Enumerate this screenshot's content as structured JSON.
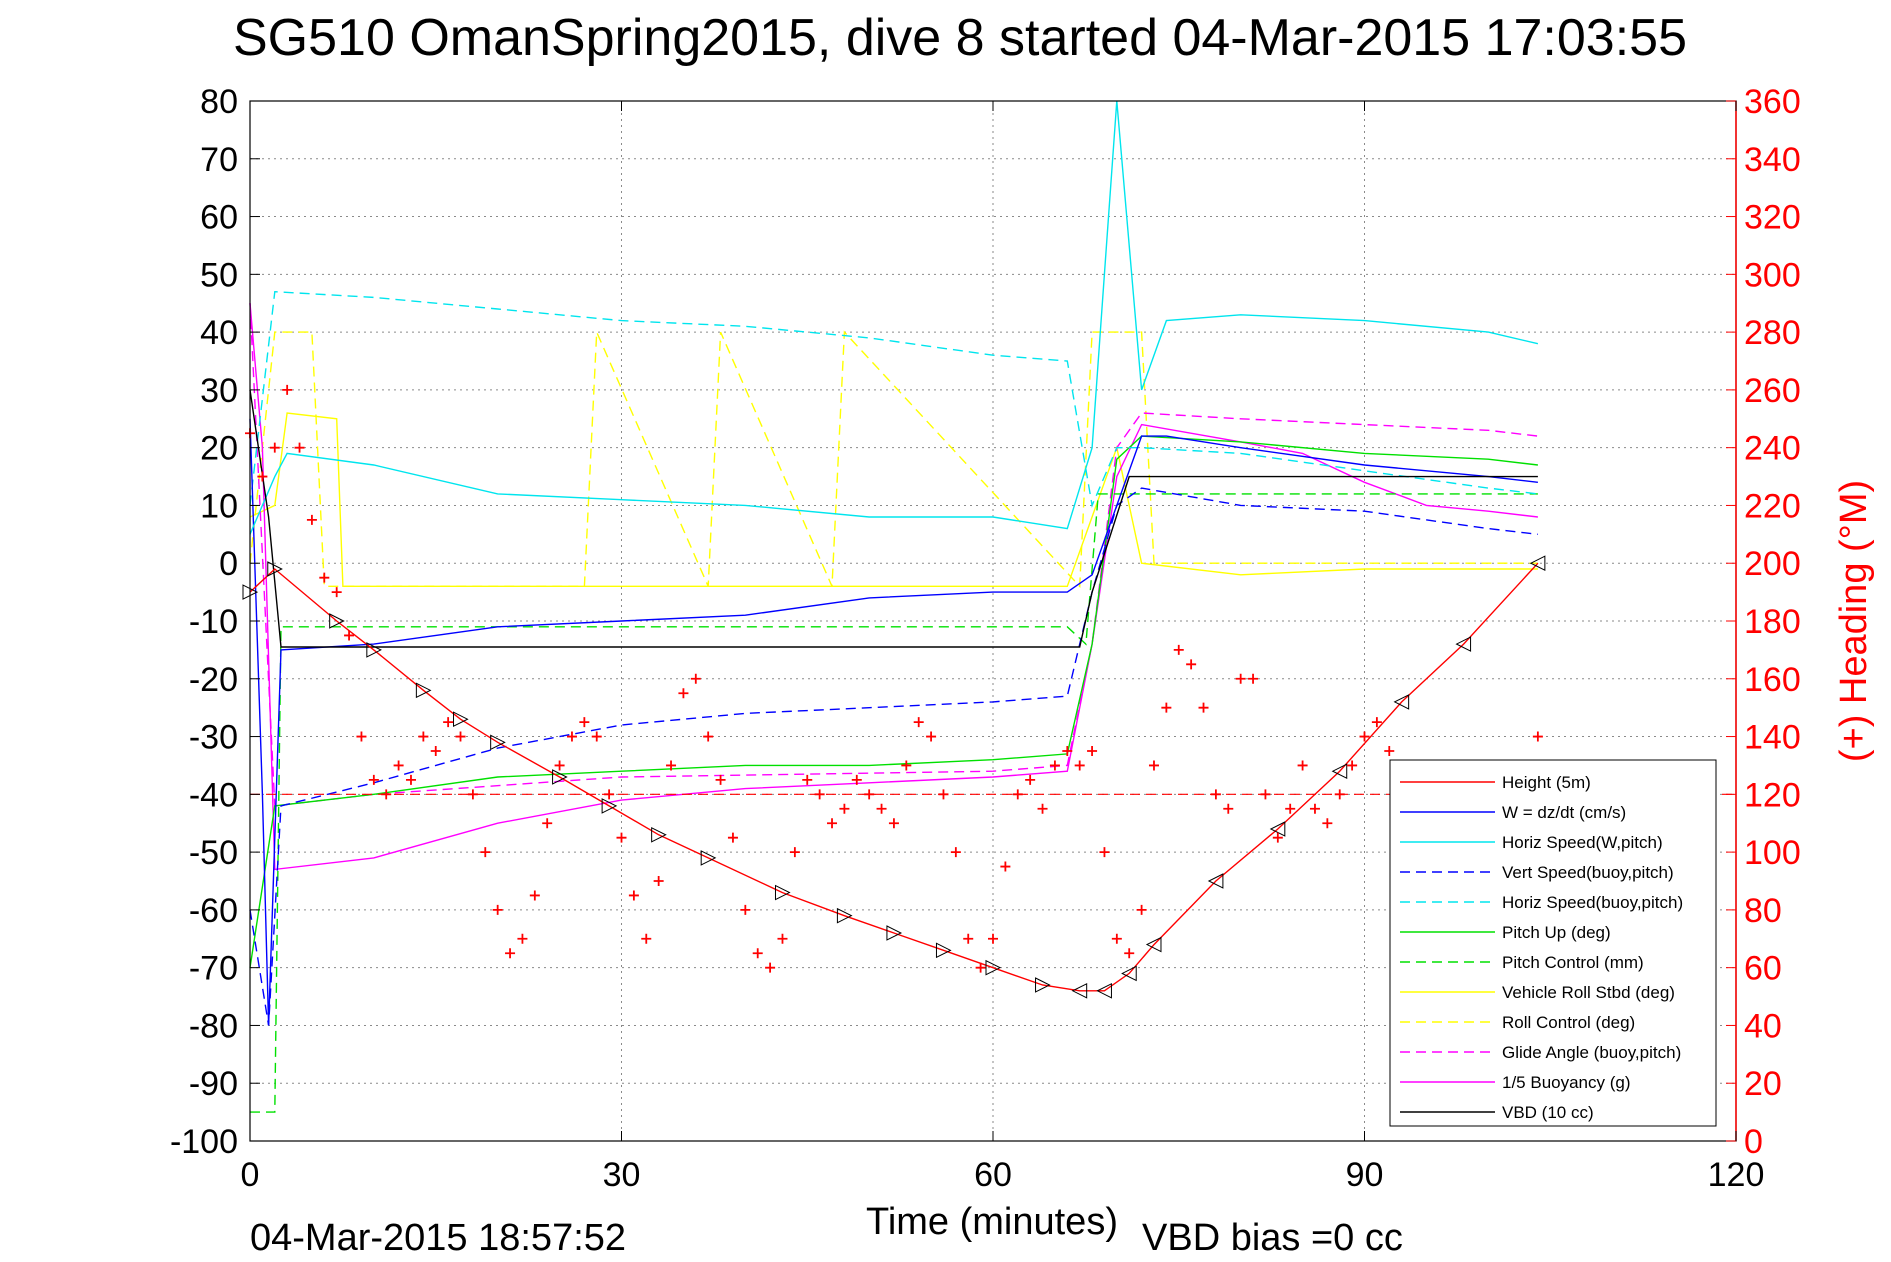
{
  "chart_data": {
    "type": "line",
    "title": "SG510 OmanSpring2015, dive 8 started 04-Mar-2015 17:03:55",
    "xlabel": "Time (minutes)",
    "ylabel": "",
    "y2label": "(+) Heading (°M)",
    "footer_left": "04-Mar-2015 18:57:52",
    "footer_right": "VBD bias =0 cc",
    "xlim": [
      0,
      120
    ],
    "ylim": [
      -100,
      80
    ],
    "y2lim": [
      0,
      360
    ],
    "xticks": [
      "0",
      "30",
      "60",
      "90",
      "120"
    ],
    "yticks": [
      "80",
      "70",
      "60",
      "50",
      "40",
      "30",
      "20",
      "10",
      "0",
      "-10",
      "-20",
      "-30",
      "-40",
      "-50",
      "-60",
      "-70",
      "-80",
      "-90",
      "-100"
    ],
    "y2ticks": [
      "360",
      "340",
      "320",
      "300",
      "280",
      "260",
      "240",
      "220",
      "200",
      "180",
      "160",
      "140",
      "120",
      "100",
      "80",
      "60",
      "40",
      "20",
      "0"
    ],
    "grid": true,
    "legend_position": "bottom-right",
    "colors": {
      "height": "#ff0000",
      "w": "#0000ff",
      "horiz_speed": "#00e5ee",
      "vert_speed_model": "#0000ff",
      "horiz_speed_model": "#00e5ee",
      "pitch": "#00e000",
      "pitch_control": "#00e000",
      "roll": "#ffff00",
      "roll_control": "#ffff00",
      "glide_angle": "#ff00ff",
      "buoyancy": "#ff00ff",
      "vbd": "#000000",
      "heading": "#ff0000"
    },
    "series": [
      {
        "name": "Height (5m)",
        "style": "solid",
        "color": "#ff0000",
        "x": [
          0,
          2,
          7,
          10,
          14,
          17,
          20,
          25,
          29,
          33,
          37,
          43,
          48,
          52,
          56,
          60,
          64,
          67,
          69,
          71,
          73,
          78,
          83,
          88,
          93,
          98,
          104
        ],
        "y": [
          -5,
          -1,
          -10,
          -15,
          -22,
          -27,
          -31,
          -37,
          -42,
          -47,
          -51,
          -57,
          -61,
          -64,
          -67,
          -70,
          -73,
          -74,
          -74,
          -71,
          -66,
          -55,
          -46,
          -36,
          -24,
          -14,
          0
        ]
      },
      {
        "name": "W = dz/dt (cm/s)",
        "style": "solid",
        "color": "#0000ff",
        "x": [
          0,
          1,
          1.5,
          2.5,
          10,
          20,
          30,
          40,
          50,
          60,
          66,
          68,
          70,
          72,
          74,
          80,
          90,
          100,
          104
        ],
        "y": [
          25,
          -40,
          -80,
          -15,
          -14,
          -11,
          -10,
          -9,
          -6,
          -5,
          -5,
          -2,
          10,
          22,
          22,
          20,
          17,
          15,
          14
        ]
      },
      {
        "name": "Horiz Speed(W,pitch)",
        "style": "solid",
        "color": "#00e5ee",
        "x": [
          0,
          2,
          3,
          10,
          20,
          30,
          40,
          50,
          60,
          66,
          68,
          69,
          70,
          72,
          74,
          80,
          90,
          100,
          104
        ],
        "y": [
          5,
          15,
          19,
          17,
          12,
          11,
          10,
          8,
          8,
          6,
          20,
          50,
          80,
          30,
          42,
          43,
          42,
          40,
          38
        ]
      },
      {
        "name": "Vert Speed(buoy,pitch)",
        "style": "dashed",
        "color": "#0000ff",
        "x": [
          0,
          1.5,
          2.5,
          10,
          20,
          30,
          40,
          50,
          60,
          66,
          68,
          70,
          72,
          80,
          90,
          100,
          104
        ],
        "y": [
          -60,
          -80,
          -42,
          -38,
          -32,
          -28,
          -26,
          -25,
          -24,
          -23,
          -5,
          10,
          13,
          10,
          9,
          6,
          5
        ]
      },
      {
        "name": "Horiz Speed(buoy,pitch)",
        "style": "dashed",
        "color": "#00e5ee",
        "x": [
          0,
          2,
          10,
          20,
          30,
          40,
          50,
          60,
          66,
          68,
          70,
          72,
          80,
          90,
          100,
          104
        ],
        "y": [
          10,
          47,
          46,
          44,
          42,
          41,
          39,
          36,
          35,
          10,
          20,
          20,
          19,
          16,
          13,
          12
        ]
      },
      {
        "name": "Pitch Up (deg)",
        "style": "solid",
        "color": "#00e000",
        "x": [
          0,
          2,
          10,
          20,
          30,
          40,
          50,
          60,
          66,
          68,
          70,
          72,
          80,
          90,
          100,
          104
        ],
        "y": [
          -70,
          -42,
          -40,
          -37,
          -36,
          -35,
          -35,
          -34,
          -33,
          -14,
          18,
          22,
          21,
          19,
          18,
          17
        ]
      },
      {
        "name": "Pitch Control (mm)",
        "style": "dashed",
        "color": "#00e000",
        "x": [
          0,
          2,
          2.5,
          10,
          66,
          67.5,
          68.5,
          70,
          104
        ],
        "y": [
          -95,
          -95,
          -11,
          -11,
          -11,
          -14,
          12,
          12,
          12
        ]
      },
      {
        "name": "Vehicle Roll Stbd (deg)",
        "style": "solid",
        "color": "#ffff00",
        "x": [
          0,
          2,
          3,
          7,
          7.5,
          10,
          20,
          30,
          40,
          50,
          60,
          66,
          70,
          72,
          80,
          90,
          100,
          104
        ],
        "y": [
          8,
          10,
          26,
          25,
          -4,
          -4,
          -4,
          -4,
          -4,
          -4,
          -4,
          -4,
          20,
          0,
          -2,
          -1,
          -1,
          -1
        ]
      },
      {
        "name": "Roll Control (deg)",
        "style": "dashed",
        "color": "#ffff00",
        "x": [
          0,
          2,
          5,
          6,
          27,
          28,
          37,
          38,
          47,
          48,
          67,
          68,
          72,
          73,
          104
        ],
        "y": [
          0,
          40,
          40,
          -4,
          -4,
          40,
          -4,
          40,
          -4,
          40,
          -4,
          40,
          40,
          0,
          0
        ]
      },
      {
        "name": "Glide Angle (buoy,pitch)",
        "style": "dashed",
        "color": "#ff00ff",
        "x": [
          0,
          2,
          10,
          30,
          60,
          66,
          68,
          70,
          72,
          80,
          90,
          100,
          104
        ],
        "y": [
          45,
          -42,
          -40,
          -37,
          -36,
          -35,
          -14,
          20,
          26,
          25,
          24,
          23,
          22
        ]
      },
      {
        "name": "1/5 Buoyancy (g)",
        "style": "solid",
        "color": "#ff00ff",
        "x": [
          0,
          1,
          2,
          10,
          20,
          30,
          40,
          50,
          60,
          66,
          68,
          70,
          72,
          80,
          85,
          90,
          95,
          100,
          104
        ],
        "y": [
          45,
          20,
          -53,
          -51,
          -45,
          -41,
          -39,
          -38,
          -37,
          -36,
          -14,
          15,
          24,
          21,
          19,
          14,
          10,
          9,
          8
        ]
      },
      {
        "name": "VBD (10 cc)",
        "style": "solid",
        "color": "#000000",
        "x": [
          0,
          1.5,
          2.5,
          10,
          30,
          60,
          67,
          68,
          71,
          72,
          80,
          90,
          100,
          104
        ],
        "y": [
          30,
          8,
          -14.5,
          -14.5,
          -14.5,
          -14.5,
          -14.5,
          -5,
          15,
          15,
          15,
          15,
          15,
          15
        ]
      },
      {
        "name": "",
        "axis": "right",
        "style": "markers",
        "color": "#ff0000",
        "x": [
          0,
          1,
          2,
          3,
          4,
          5,
          6,
          7,
          8,
          9,
          10,
          11,
          12,
          13,
          14,
          15,
          16,
          17,
          18,
          19,
          20,
          21,
          22,
          23,
          24,
          25,
          26,
          27,
          28,
          29,
          30,
          31,
          32,
          33,
          34,
          35,
          36,
          37,
          38,
          39,
          40,
          41,
          42,
          43,
          44,
          45,
          46,
          47,
          48,
          49,
          50,
          51,
          52,
          53,
          54,
          55,
          56,
          57,
          58,
          59,
          60,
          61,
          62,
          63,
          64,
          65,
          66,
          67,
          68,
          69,
          70,
          71,
          72,
          73,
          74,
          75,
          76,
          77,
          78,
          79,
          80,
          81,
          82,
          83,
          84,
          85,
          86,
          87,
          88,
          89,
          90,
          91,
          92,
          93,
          104
        ],
        "y": [
          245,
          230,
          240,
          260,
          240,
          215,
          195,
          190,
          175,
          140,
          125,
          120,
          130,
          125,
          140,
          135,
          145,
          140,
          120,
          100,
          80,
          65,
          70,
          85,
          110,
          130,
          140,
          145,
          140,
          120,
          105,
          85,
          70,
          90,
          130,
          155,
          160,
          140,
          125,
          105,
          80,
          65,
          60,
          70,
          100,
          125,
          120,
          110,
          115,
          125,
          120,
          115,
          110,
          130,
          145,
          140,
          120,
          100,
          70,
          60,
          70,
          95,
          120,
          125,
          115,
          130,
          135,
          130,
          135,
          100,
          70,
          65,
          80,
          130,
          150,
          170,
          165,
          150,
          120,
          115,
          160,
          160,
          120,
          105,
          115,
          130,
          115,
          110,
          120,
          130,
          140,
          145,
          135,
          130,
          140
        ]
      }
    ]
  }
}
